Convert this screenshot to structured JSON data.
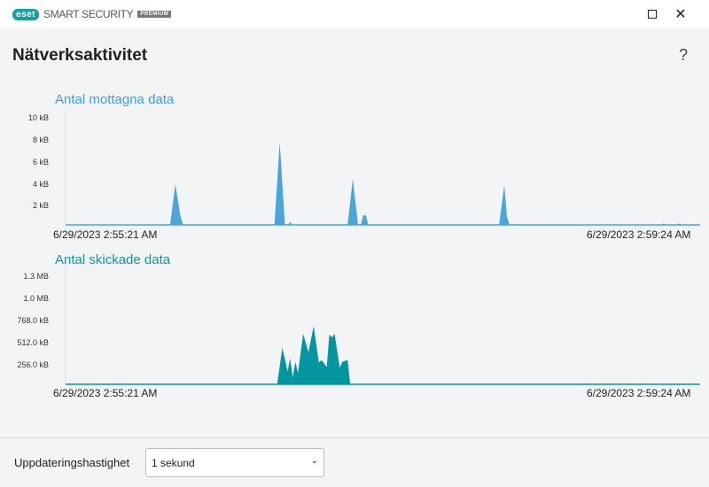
{
  "window": {
    "brand": "eset",
    "product": "SMART SECURITY",
    "edition": "PREMIUM",
    "minimize_icon": "minimize-icon",
    "close_icon": "close-icon"
  },
  "page": {
    "title": "Nätverksaktivitet",
    "help": "?"
  },
  "colors": {
    "received": "#4aa6d9",
    "sent": "#04969e",
    "title_received": "#3d9dd8",
    "title_sent": "#0e96a0"
  },
  "chart_data": [
    {
      "type": "area",
      "title": "Antal mottagna data",
      "y_ticks": [
        "10 kB",
        "8 kB",
        "6 kB",
        "4 kB",
        "2 kB"
      ],
      "y_unit": "kB",
      "ylim": [
        0,
        10
      ],
      "x_start_label": "6/29/2023 2:55:21 AM",
      "x_end_label": "6/29/2023 2:59:24 AM",
      "xlim": [
        "2:55:21",
        "2:59:24"
      ],
      "points": [
        [
          "2:56:01",
          0
        ],
        [
          "2:56:03",
          3.8
        ],
        [
          "2:56:05",
          0.8
        ],
        [
          "2:56:06",
          0
        ],
        [
          "2:56:41",
          0
        ],
        [
          "2:56:43",
          7.7
        ],
        [
          "2:56:45",
          0
        ],
        [
          "2:56:46",
          0
        ],
        [
          "2:56:47",
          0.25
        ],
        [
          "2:56:48",
          0
        ],
        [
          "2:57:09",
          0
        ],
        [
          "2:57:11",
          4.3
        ],
        [
          "2:57:13",
          0
        ],
        [
          "2:57:14",
          0
        ],
        [
          "2:57:15",
          0.9
        ],
        [
          "2:57:16",
          0.9
        ],
        [
          "2:57:17",
          0
        ],
        [
          "2:58:07",
          0
        ],
        [
          "2:58:09",
          3.7
        ],
        [
          "2:58:10",
          0.8
        ],
        [
          "2:58:11",
          0
        ],
        [
          "2:58:13",
          0
        ],
        [
          "2:58:14",
          0.1
        ],
        [
          "2:58:15",
          0
        ],
        [
          "2:59:09",
          0
        ],
        [
          "2:59:10",
          0.15
        ],
        [
          "2:59:11",
          0
        ],
        [
          "2:59:15",
          0
        ],
        [
          "2:59:16",
          0.15
        ],
        [
          "2:59:17",
          0
        ]
      ]
    },
    {
      "type": "area",
      "title": "Antal skickade data",
      "y_ticks": [
        "1.3 MB",
        "1.0 MB",
        "768.0 kB",
        "512.0 kB",
        "256.0 kB"
      ],
      "y_unit": "kB",
      "ylim": [
        0,
        1331
      ],
      "x_start_label": "6/29/2023 2:55:21 AM",
      "x_end_label": "6/29/2023 2:59:24 AM",
      "xlim": [
        "2:55:21",
        "2:59:24"
      ],
      "points": [
        [
          "2:56:42",
          0
        ],
        [
          "2:56:44",
          439
        ],
        [
          "2:56:46",
          157
        ],
        [
          "2:56:47",
          313
        ],
        [
          "2:56:48",
          84
        ],
        [
          "2:56:49",
          272
        ],
        [
          "2:56:50",
          136
        ],
        [
          "2:56:52",
          606
        ],
        [
          "2:56:54",
          387
        ],
        [
          "2:56:56",
          700
        ],
        [
          "2:56:58",
          261
        ],
        [
          "2:56:59",
          292
        ],
        [
          "2:57:01",
          209
        ],
        [
          "2:57:02",
          596
        ],
        [
          "2:57:03",
          564
        ],
        [
          "2:57:04",
          606
        ],
        [
          "2:57:06",
          199
        ],
        [
          "2:57:07",
          272
        ],
        [
          "2:57:09",
          292
        ],
        [
          "2:57:10",
          0
        ]
      ]
    }
  ],
  "footer": {
    "label": "Uppdateringshastighet",
    "select_value": "1 sekund"
  }
}
